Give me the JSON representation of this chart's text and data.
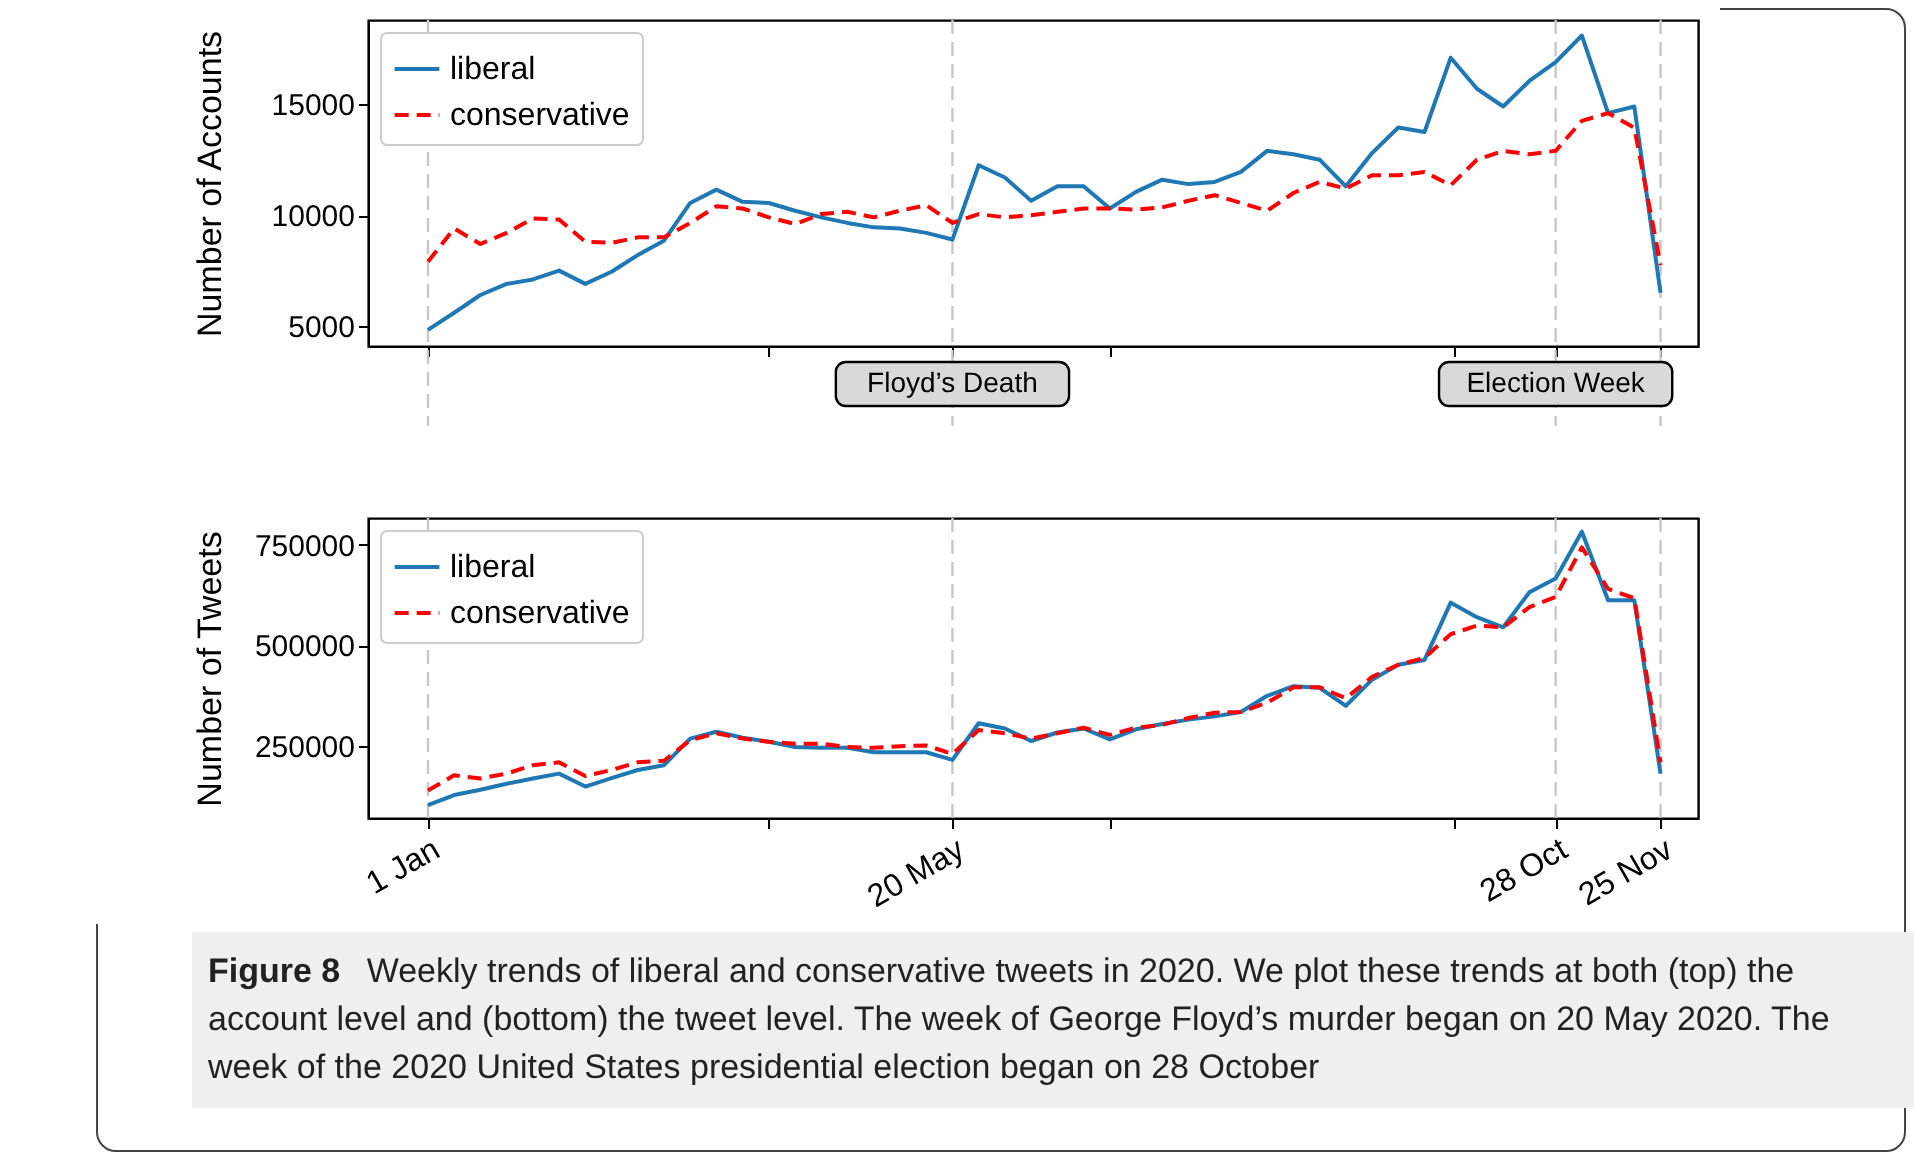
{
  "chart_data": [
    {
      "type": "line",
      "ylabel": "Number of Accounts",
      "legend": "top left",
      "tick_labels": "y",
      "x": [
        "2020-01-01",
        "2020-01-08",
        "2020-01-15",
        "2020-01-22",
        "2020-01-29",
        "2020-02-05",
        "2020-02-12",
        "2020-02-19",
        "2020-02-26",
        "2020-03-04",
        "2020-03-11",
        "2020-03-18",
        "2020-03-25",
        "2020-04-01",
        "2020-04-08",
        "2020-04-15",
        "2020-04-22",
        "2020-04-29",
        "2020-05-06",
        "2020-05-13",
        "2020-05-20",
        "2020-05-27",
        "2020-06-03",
        "2020-06-10",
        "2020-06-17",
        "2020-06-24",
        "2020-07-01",
        "2020-07-08",
        "2020-07-15",
        "2020-07-22",
        "2020-07-29",
        "2020-08-05",
        "2020-08-12",
        "2020-08-19",
        "2020-08-26",
        "2020-09-02",
        "2020-09-09",
        "2020-09-16",
        "2020-09-23",
        "2020-09-30",
        "2020-10-07",
        "2020-10-14",
        "2020-10-21",
        "2020-10-28",
        "2020-11-04",
        "2020-11-11",
        "2020-11-18",
        "2020-11-25"
      ],
      "series": [
        {
          "name": "liberal",
          "color": "#1f77b4",
          "line_style": "solid",
          "values": [
            4830,
            5600,
            6400,
            6900,
            7100,
            7500,
            6900,
            7450,
            8200,
            8850,
            10550,
            11150,
            10600,
            10550,
            10200,
            9900,
            9650,
            9450,
            9400,
            9200,
            8900,
            12250,
            11700,
            10650,
            11300,
            11300,
            10300,
            11050,
            11600,
            11400,
            11500,
            11950,
            12900,
            12750,
            12500,
            11300,
            12800,
            13950,
            13750,
            17100,
            15700,
            14900,
            16050,
            16900,
            18100,
            14600,
            14900,
            6500
          ]
        },
        {
          "name": "conservative",
          "color": "#ff0000",
          "line_style": "dashed",
          "values": [
            7900,
            9400,
            8700,
            9200,
            9850,
            9800,
            8800,
            8750,
            9000,
            9000,
            9650,
            10400,
            10300,
            9900,
            9600,
            10050,
            10150,
            9900,
            10200,
            10450,
            9650,
            10050,
            9900,
            10000,
            10150,
            10300,
            10300,
            10250,
            10350,
            10650,
            10900,
            10550,
            10200,
            11000,
            11500,
            11200,
            11800,
            11800,
            11950,
            11350,
            12500,
            12900,
            12750,
            12900,
            14250,
            14600,
            13950,
            7750
          ]
        }
      ],
      "xlim": [
        "2019-12-16",
        "2020-12-05"
      ],
      "xticks": [
        {
          "value": "2020-01-01",
          "label": null
        },
        {
          "value": "2020-04-01",
          "label": null
        },
        {
          "value": "2020-05-20",
          "label": null
        },
        {
          "value": "2020-07-01",
          "label": null
        },
        {
          "value": "2020-10-01",
          "label": null
        },
        {
          "value": "2020-10-28",
          "label": null
        },
        {
          "value": "2020-11-25",
          "label": null
        }
      ],
      "ylim": [
        4100,
        18800
      ],
      "yticks": [
        5000,
        10000,
        15000
      ],
      "ref_lines": [
        {
          "axis": "x",
          "value": "2020-01-01",
          "color": "#c8c8c8",
          "line_style": "dashed"
        },
        {
          "axis": "x",
          "value": "2020-05-20",
          "label": "Floyd’s Death",
          "color": "#c8c8c8",
          "line_style": "dashed"
        },
        {
          "axis": "x",
          "value": "2020-10-28",
          "label": "Election Week",
          "color": "#c8c8c8",
          "line_style": "dashed"
        },
        {
          "axis": "x",
          "value": "2020-11-25",
          "color": "#c8c8c8",
          "line_style": "dashed"
        }
      ]
    },
    {
      "type": "line",
      "ylabel": "Number of Tweets",
      "legend": "top left",
      "x": [
        "2020-01-01",
        "2020-01-08",
        "2020-01-15",
        "2020-01-22",
        "2020-01-29",
        "2020-02-05",
        "2020-02-12",
        "2020-02-19",
        "2020-02-26",
        "2020-03-04",
        "2020-03-11",
        "2020-03-18",
        "2020-03-25",
        "2020-04-01",
        "2020-04-08",
        "2020-04-15",
        "2020-04-22",
        "2020-04-29",
        "2020-05-06",
        "2020-05-13",
        "2020-05-20",
        "2020-05-27",
        "2020-06-03",
        "2020-06-10",
        "2020-06-17",
        "2020-06-24",
        "2020-07-01",
        "2020-07-08",
        "2020-07-15",
        "2020-07-22",
        "2020-07-29",
        "2020-08-05",
        "2020-08-12",
        "2020-08-19",
        "2020-08-26",
        "2020-09-02",
        "2020-09-09",
        "2020-09-16",
        "2020-09-23",
        "2020-09-30",
        "2020-10-07",
        "2020-10-14",
        "2020-10-21",
        "2020-10-28",
        "2020-11-04",
        "2020-11-11",
        "2020-11-18",
        "2020-11-25"
      ],
      "series": [
        {
          "name": "liberal",
          "color": "#1f77b4",
          "line_style": "solid",
          "values": [
            104000,
            129000,
            142000,
            157000,
            170000,
            182000,
            150000,
            171000,
            191000,
            203000,
            269000,
            286000,
            271000,
            261000,
            248000,
            246000,
            246000,
            235000,
            235000,
            235000,
            216000,
            307000,
            294000,
            263000,
            284000,
            294000,
            267000,
            292000,
            305000,
            316000,
            324000,
            335000,
            375000,
            399000,
            395000,
            350000,
            415000,
            452000,
            464000,
            606000,
            570000,
            545000,
            632000,
            666000,
            782000,
            612000,
            612000,
            182000
          ]
        },
        {
          "name": "conservative",
          "color": "#ff0000",
          "line_style": "dashed",
          "values": [
            140000,
            178000,
            170000,
            182000,
            203000,
            210000,
            176000,
            191000,
            210000,
            214000,
            265000,
            282000,
            269000,
            261000,
            256000,
            256000,
            248000,
            246000,
            250000,
            252000,
            231000,
            290000,
            282000,
            269000,
            282000,
            296000,
            278000,
            296000,
            303000,
            320000,
            333000,
            335000,
            358000,
            396000,
            396000,
            369000,
            422000,
            452000,
            469000,
            528000,
            549000,
            545000,
            595000,
            620000,
            743000,
            640000,
            617000,
            210000
          ]
        }
      ],
      "xlim": [
        "2019-12-16",
        "2020-12-05"
      ],
      "xticks": [
        {
          "value": "2020-01-01",
          "label": "1 Jan"
        },
        {
          "value": "2020-04-01",
          "label": null
        },
        {
          "value": "2020-05-20",
          "label": "20 May"
        },
        {
          "value": "2020-07-01",
          "label": null
        },
        {
          "value": "2020-10-01",
          "label": null
        },
        {
          "value": "2020-10-28",
          "label": "28 Oct"
        },
        {
          "value": "2020-11-25",
          "label": "25 Nov"
        }
      ],
      "ylim": [
        72000,
        816000
      ],
      "yticks": [
        250000,
        500000,
        750000
      ],
      "ref_lines": [
        {
          "axis": "x",
          "value": "2020-01-01",
          "color": "#c8c8c8",
          "line_style": "dashed"
        },
        {
          "axis": "x",
          "value": "2020-05-20",
          "color": "#c8c8c8",
          "line_style": "dashed"
        },
        {
          "axis": "x",
          "value": "2020-10-28",
          "color": "#c8c8c8",
          "line_style": "dashed"
        },
        {
          "axis": "x",
          "value": "2020-11-25",
          "color": "#c8c8c8",
          "line_style": "dashed"
        }
      ],
      "annotations": [
        "Figure 8",
        "Weekly trends of liberal and conservative tweets in 2020. We plot these trends at both (top) the account level and (bottom) the tweet level. The week of George Floyd’s murder began on 20 May 2020. The week of the 2020 United States presidential election began on 28 October"
      ]
    }
  ]
}
